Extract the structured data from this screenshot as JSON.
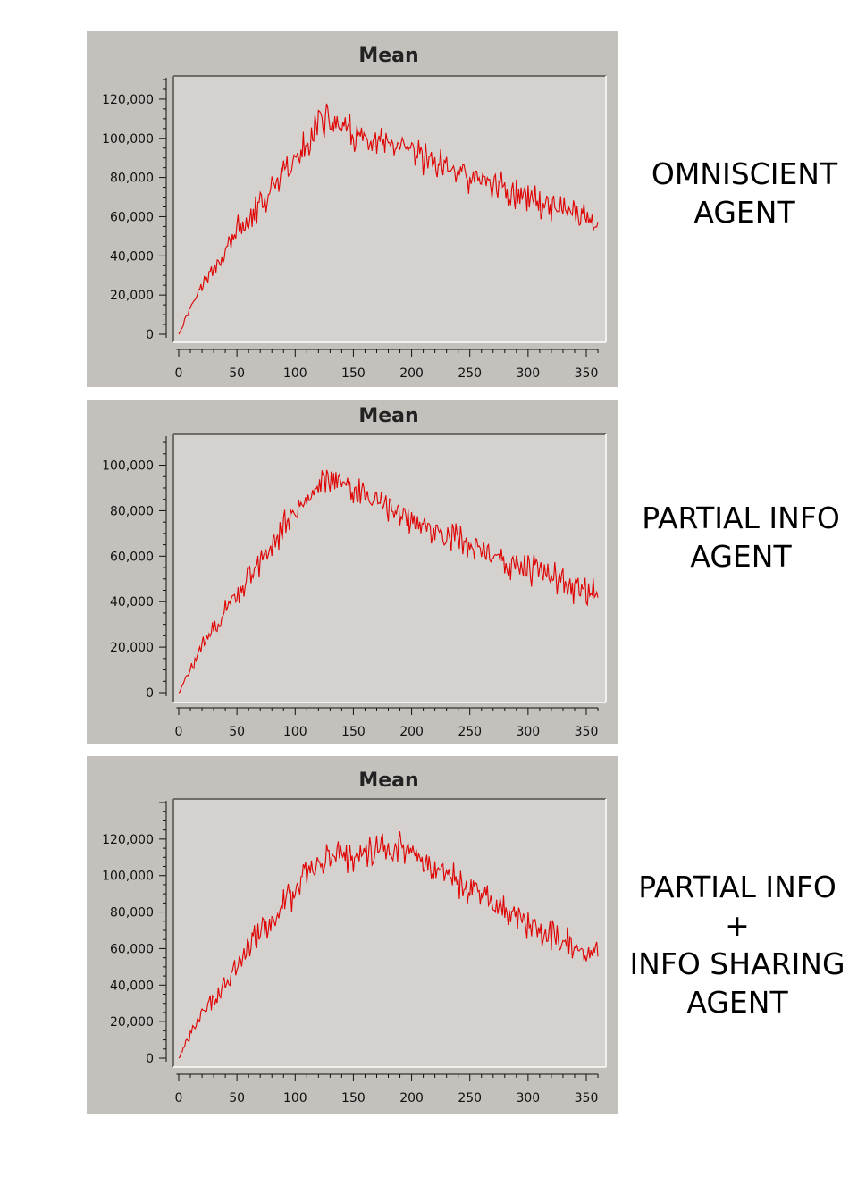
{
  "chart_data": [
    {
      "type": "line",
      "title": "Mean",
      "xlabel": "",
      "ylabel": "",
      "xlim": [
        -5,
        365
      ],
      "ylim": [
        -5000,
        130000
      ],
      "x_ticks": [
        0,
        50,
        100,
        150,
        200,
        250,
        300,
        350
      ],
      "y_ticks": [
        0,
        20000,
        40000,
        60000,
        80000,
        100000,
        120000
      ],
      "x_tick_labels": [
        "0",
        "50",
        "100",
        "150",
        "200",
        "250",
        "300",
        "350"
      ],
      "y_tick_labels": [
        "0",
        "20,000",
        "40,000",
        "60,000",
        "80,000",
        "100,000",
        "120,000"
      ],
      "grid": false,
      "line_color": "#e00000",
      "series": [
        {
          "x": [
            0,
            10,
            20,
            30,
            40,
            50,
            60,
            70,
            80,
            90,
            100,
            110,
            120,
            130,
            140,
            150,
            160,
            170,
            180,
            190,
            200,
            210,
            220,
            230,
            240,
            250,
            260,
            270,
            280,
            290,
            300,
            310,
            320,
            330,
            340,
            350,
            360
          ],
          "values": [
            0,
            14000,
            25000,
            33000,
            42000,
            52000,
            58000,
            66000,
            72000,
            82000,
            88000,
            97000,
            110000,
            108000,
            106000,
            102000,
            98000,
            97000,
            96000,
            94000,
            92000,
            90000,
            88000,
            85000,
            83000,
            80000,
            78000,
            77000,
            74000,
            72000,
            70000,
            68000,
            66000,
            64000,
            62000,
            59000,
            58000
          ]
        }
      ],
      "side_label": [
        "OMNISCIENT",
        "AGENT"
      ]
    },
    {
      "type": "line",
      "title": "Mean",
      "xlabel": "",
      "ylabel": "",
      "xlim": [
        -5,
        365
      ],
      "ylim": [
        -5000,
        112000
      ],
      "x_ticks": [
        0,
        50,
        100,
        150,
        200,
        250,
        300,
        350
      ],
      "y_ticks": [
        0,
        20000,
        40000,
        60000,
        80000,
        100000
      ],
      "x_tick_labels": [
        "0",
        "50",
        "100",
        "150",
        "200",
        "250",
        "300",
        "350"
      ],
      "y_tick_labels": [
        "0",
        "20,000",
        "40,000",
        "60,000",
        "80,000",
        "100,000"
      ],
      "grid": false,
      "line_color": "#e00000",
      "series": [
        {
          "x": [
            0,
            10,
            20,
            30,
            40,
            50,
            60,
            70,
            80,
            90,
            100,
            110,
            120,
            130,
            140,
            150,
            160,
            170,
            180,
            190,
            200,
            210,
            220,
            230,
            240,
            250,
            260,
            270,
            280,
            290,
            300,
            310,
            320,
            330,
            340,
            350,
            360
          ],
          "values": [
            0,
            10000,
            20000,
            28000,
            36000,
            43000,
            50000,
            57000,
            63000,
            74000,
            79000,
            84000,
            92000,
            95000,
            92000,
            88000,
            87000,
            84000,
            81000,
            79000,
            76000,
            73000,
            71000,
            69000,
            67000,
            65000,
            62000,
            61000,
            58000,
            56000,
            55000,
            52000,
            51000,
            49000,
            47000,
            45000,
            43000
          ]
        }
      ],
      "side_label": [
        "PARTIAL INFO",
        "AGENT"
      ]
    },
    {
      "type": "line",
      "title": "Mean",
      "xlabel": "",
      "ylabel": "",
      "xlim": [
        -5,
        365
      ],
      "ylim": [
        -5000,
        140000
      ],
      "x_ticks": [
        0,
        50,
        100,
        150,
        200,
        250,
        300,
        350
      ],
      "y_ticks": [
        0,
        20000,
        40000,
        60000,
        80000,
        100000,
        120000
      ],
      "x_tick_labels": [
        "0",
        "50",
        "100",
        "150",
        "200",
        "250",
        "300",
        "350"
      ],
      "y_tick_labels": [
        "0",
        "20,000",
        "40,000",
        "60,000",
        "80,000",
        "100,000",
        "120,000"
      ],
      "grid": false,
      "line_color": "#e00000",
      "series": [
        {
          "x": [
            0,
            10,
            20,
            30,
            40,
            50,
            60,
            70,
            80,
            90,
            100,
            110,
            120,
            130,
            140,
            150,
            160,
            170,
            180,
            190,
            200,
            210,
            220,
            230,
            240,
            250,
            260,
            270,
            280,
            290,
            300,
            310,
            320,
            330,
            340,
            350,
            360
          ],
          "values": [
            0,
            13000,
            24000,
            33000,
            42000,
            50000,
            60000,
            68000,
            76000,
            85000,
            92000,
            100000,
            108000,
            112000,
            112000,
            111000,
            113000,
            115000,
            117000,
            118000,
            112000,
            108000,
            104000,
            100000,
            96000,
            92000,
            88000,
            84000,
            80000,
            77000,
            73000,
            70000,
            67000,
            64000,
            62000,
            60000,
            57000
          ]
        }
      ],
      "side_label": [
        "PARTIAL INFO",
        "+",
        "INFO SHARING",
        "AGENT"
      ]
    }
  ]
}
